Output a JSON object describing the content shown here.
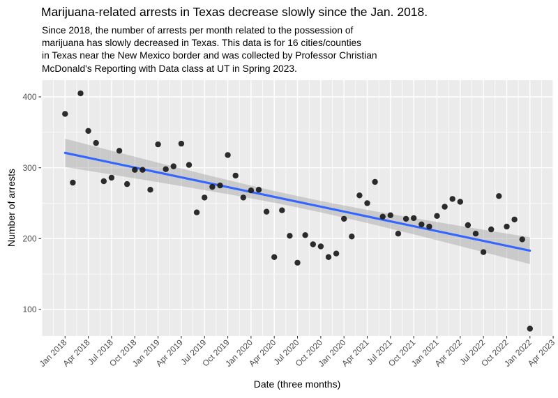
{
  "page": {
    "background": "#FFFFFF"
  },
  "chart_data": {
    "type": "scatter",
    "title": "Marijuana-related arrests in Texas decrease slowly since the Jan. 2018.",
    "subtitle": "Since 2018, the number of arrests per month related to the possession of\nmarijuana has slowly decreased in Texas. This data is for 16 cities/counties\nin Texas near the New Mexico border and was collected by Professor Christian\nMcDonald's Reporting with Data class at UT in Spring 2023.",
    "xlabel": "Date (three months)",
    "ylabel": "Number of arrests",
    "legend": "none",
    "grid": "white major and minor gridlines on gray panel",
    "x_tick_labels": [
      "Jan 2018",
      "Apr 2018",
      "Jul 2018",
      "Oct 2018",
      "Jan 2019",
      "Apr 2019",
      "Jul 2019",
      "Oct 2019",
      "Jan 2020",
      "Apr 2020",
      "Jul 2020",
      "Oct 2020",
      "Jan 2020",
      "Apr 2021",
      "Jul 2021",
      "Oct 2021",
      "Jan 2021",
      "Apr 2022",
      "Jul 2022",
      "Oct 2022",
      "Jan 2022",
      "Apr 2023"
    ],
    "y_tick_values": [
      400,
      300,
      200,
      100
    ],
    "ylim": [
      63,
      424
    ],
    "xlim_months_from_jan2018": [
      -3,
      63
    ],
    "series_start_month": "Jan 2018",
    "series_interval": "monthly",
    "values_by_year": {
      "2018": [
        376,
        279,
        405,
        352,
        335,
        281,
        286,
        324,
        277,
        297,
        297,
        269
      ],
      "2019": [
        333,
        298,
        302,
        334,
        304,
        237,
        258,
        273,
        275,
        318,
        289,
        258
      ],
      "2020": [
        268,
        269,
        238,
        174,
        240,
        204,
        166,
        205,
        192,
        189,
        174,
        179
      ],
      "2021": [
        228,
        203,
        261,
        250,
        280,
        231,
        233,
        207,
        228,
        229,
        220,
        217
      ],
      "2022": [
        232,
        245,
        256,
        252,
        219,
        207,
        181,
        213,
        260,
        217,
        227,
        199
      ],
      "2023": [
        73
      ]
    },
    "year_order": [
      "2018",
      "2019",
      "2020",
      "2021",
      "2022",
      "2023"
    ],
    "trend": {
      "kind": "linear smooth with confidence band",
      "start": {
        "month": "Jan 2018",
        "value": 321
      },
      "end": {
        "month": "Jan 2023",
        "value": 183
      },
      "ci_halfwidth": {
        "left": 20,
        "min": 8,
        "min_at_month_index": 31
      }
    },
    "colors": {
      "panel_bg": "#EBEBEB",
      "grid": "#FFFFFF",
      "point": "#1A1A1A",
      "trend_line": "#3366FF",
      "ci_band": "#999999",
      "ci_band_opacity": 0.4,
      "tick_text": "#4D4D4D",
      "axis_tick": "#333333",
      "title_text": "#000000"
    }
  }
}
